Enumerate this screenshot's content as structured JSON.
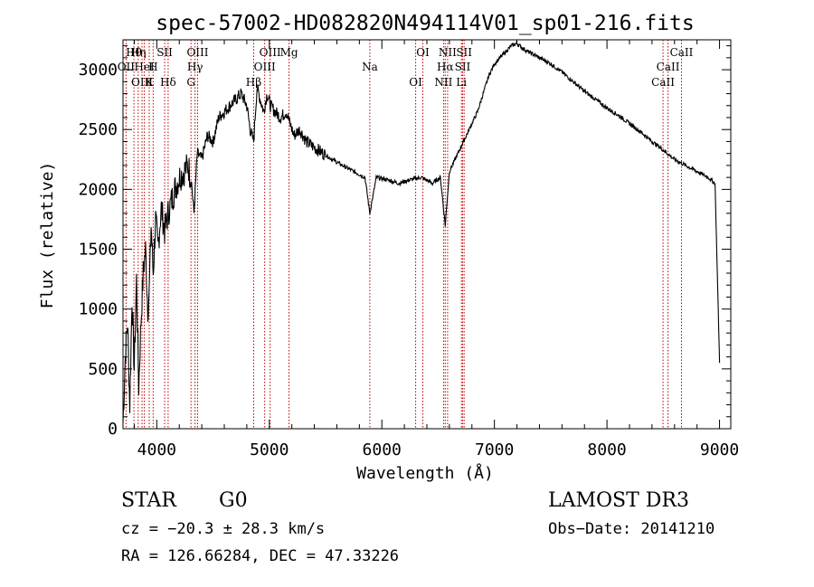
{
  "chart_data": {
    "type": "line",
    "title": "spec-57002-HD082820N494114V01_sp01-216.fits",
    "xlabel": "Wavelength (Å)",
    "ylabel": "Flux (relative)",
    "xlim": [
      3700,
      9100
    ],
    "ylim": [
      0,
      3250
    ],
    "xticks": [
      4000,
      5000,
      6000,
      7000,
      8000,
      9000
    ],
    "yticks": [
      0,
      500,
      1000,
      1500,
      2000,
      2500,
      3000
    ],
    "series": [
      {
        "name": "spectrum",
        "x": [
          3700,
          3720,
          3740,
          3760,
          3780,
          3800,
          3820,
          3840,
          3860,
          3880,
          3900,
          3920,
          3933,
          3950,
          3968,
          3990,
          4010,
          4040,
          4070,
          4101,
          4130,
          4160,
          4200,
          4240,
          4280,
          4310,
          4330,
          4360,
          4400,
          4450,
          4500,
          4550,
          4600,
          4650,
          4700,
          4750,
          4800,
          4830,
          4861,
          4890,
          4920,
          4950,
          4980,
          5010,
          5050,
          5100,
          5150,
          5183,
          5220,
          5270,
          5330,
          5400,
          5480,
          5560,
          5650,
          5750,
          5850,
          5893,
          5950,
          6050,
          6150,
          6250,
          6350,
          6450,
          6520,
          6563,
          6600,
          6650,
          6700,
          6750,
          6800,
          6850,
          6900,
          6950,
          7000,
          7050,
          7100,
          7150,
          7200,
          7250,
          7300,
          7400,
          7500,
          7600,
          7700,
          7800,
          7900,
          8000,
          8100,
          8200,
          8300,
          8400,
          8500,
          8600,
          8700,
          8800,
          8900,
          8960,
          9000
        ],
        "values": [
          50,
          600,
          900,
          200,
          1100,
          500,
          1250,
          350,
          900,
          1300,
          1500,
          1000,
          1150,
          1700,
          1300,
          1750,
          1500,
          1850,
          1650,
          1800,
          1900,
          2000,
          2100,
          2150,
          2200,
          2050,
          1800,
          2300,
          2250,
          2450,
          2400,
          2600,
          2650,
          2700,
          2750,
          2800,
          2700,
          2500,
          2400,
          2850,
          2750,
          2650,
          2800,
          2700,
          2650,
          2600,
          2650,
          2550,
          2450,
          2500,
          2400,
          2350,
          2300,
          2250,
          2200,
          2150,
          2100,
          1800,
          2100,
          2080,
          2050,
          2080,
          2100,
          2050,
          2100,
          1700,
          2150,
          2250,
          2350,
          2450,
          2550,
          2650,
          2800,
          2950,
          3050,
          3100,
          3150,
          3200,
          3220,
          3180,
          3150,
          3100,
          3050,
          2980,
          2900,
          2820,
          2750,
          2680,
          2620,
          2550,
          2480,
          2400,
          2330,
          2250,
          2200,
          2150,
          2100,
          2050,
          550
        ]
      }
    ],
    "lines": [
      {
        "label": "Hθ",
        "wave": 3797
      },
      {
        "label": "OII",
        "wave": 3727
      },
      {
        "label": "OIII",
        "wave": 3869
      },
      {
        "label": "Hη",
        "wave": 3835
      },
      {
        "label": "HeI",
        "wave": 3889
      },
      {
        "label": "K",
        "wave": 3933
      },
      {
        "label": "SII",
        "wave": 4070
      },
      {
        "label": "H",
        "wave": 3968
      },
      {
        "label": "Hδ",
        "wave": 4101
      },
      {
        "label": "OIII",
        "wave": 4363
      },
      {
        "label": "Hγ",
        "wave": 4340
      },
      {
        "label": "G",
        "wave": 4304
      },
      {
        "label": "OIII",
        "wave": 5007
      },
      {
        "label": "OIII",
        "wave": 4959
      },
      {
        "label": "Hβ",
        "wave": 4861
      },
      {
        "label": "Mg",
        "wave": 5175
      },
      {
        "label": "Na",
        "wave": 5893
      },
      {
        "label": "OI",
        "wave": 6300
      },
      {
        "label": "OI",
        "wave": 6364
      },
      {
        "label": "Hα",
        "wave": 6563
      },
      {
        "label": "NII",
        "wave": 6548
      },
      {
        "label": "NII",
        "wave": 6584
      },
      {
        "label": "SII",
        "wave": 6717
      },
      {
        "label": "Li",
        "wave": 6707
      },
      {
        "label": "SII",
        "wave": 6731
      },
      {
        "label": "CaII",
        "wave": 8542
      },
      {
        "label": "CaII",
        "wave": 8498
      },
      {
        "label": "CaII",
        "wave": 8662
      }
    ]
  },
  "info": {
    "star_type": "STAR",
    "subclass": "G0",
    "survey": "LAMOST DR3",
    "cz": "cz = −20.3 ± 28.3 km/s",
    "obs_date": "Obs−Date: 20141210",
    "coords": "RA = 126.66284, DEC =  47.33226"
  }
}
